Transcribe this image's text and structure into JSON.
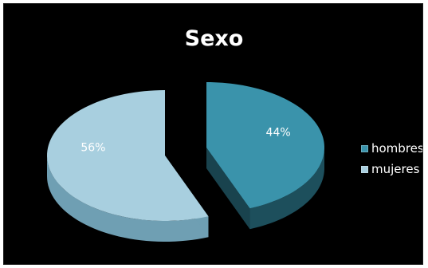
{
  "chart_data": {
    "type": "pie",
    "title": "Sexo",
    "categories": [
      "hombres",
      "mujeres"
    ],
    "values": [
      44,
      56
    ],
    "labels": [
      "44%",
      "56%"
    ],
    "colors": [
      "#3a93ab",
      "#a8cfdf"
    ],
    "side_colors": [
      "#1d4f5c",
      "#6f9fb3"
    ],
    "legend_position": "right",
    "exploded": true,
    "style": "3d"
  }
}
